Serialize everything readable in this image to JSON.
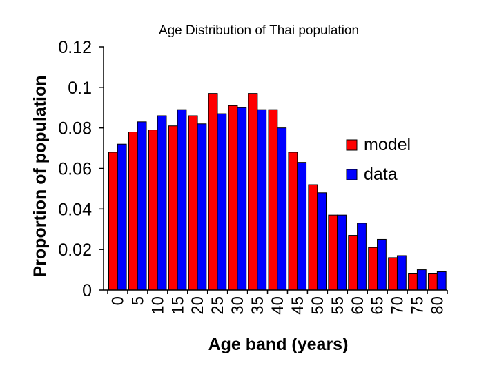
{
  "chart_data": {
    "type": "bar",
    "title": "Age Distribution of Thai population",
    "xlabel": "Age band (years)",
    "ylabel": "Proportion of population",
    "ylim": [
      0,
      0.12
    ],
    "yticks": [
      "0",
      "0.02",
      "0.04",
      "0.06",
      "0.08",
      "0.1",
      "0.12"
    ],
    "categories": [
      "0",
      "5",
      "10",
      "15",
      "20",
      "25",
      "30",
      "35",
      "40",
      "45",
      "50",
      "55",
      "60",
      "65",
      "70",
      "75",
      "80"
    ],
    "series": [
      {
        "name": "model",
        "color": "#ff0000",
        "values": [
          0.068,
          0.078,
          0.079,
          0.081,
          0.086,
          0.097,
          0.091,
          0.097,
          0.089,
          0.068,
          0.052,
          0.037,
          0.027,
          0.021,
          0.016,
          0.008,
          0.008
        ]
      },
      {
        "name": "data",
        "color": "#0000ff",
        "values": [
          0.072,
          0.083,
          0.086,
          0.089,
          0.082,
          0.087,
          0.09,
          0.089,
          0.08,
          0.063,
          0.048,
          0.037,
          0.033,
          0.025,
          0.017,
          0.01,
          0.009
        ]
      }
    ],
    "legend_position": "right"
  }
}
